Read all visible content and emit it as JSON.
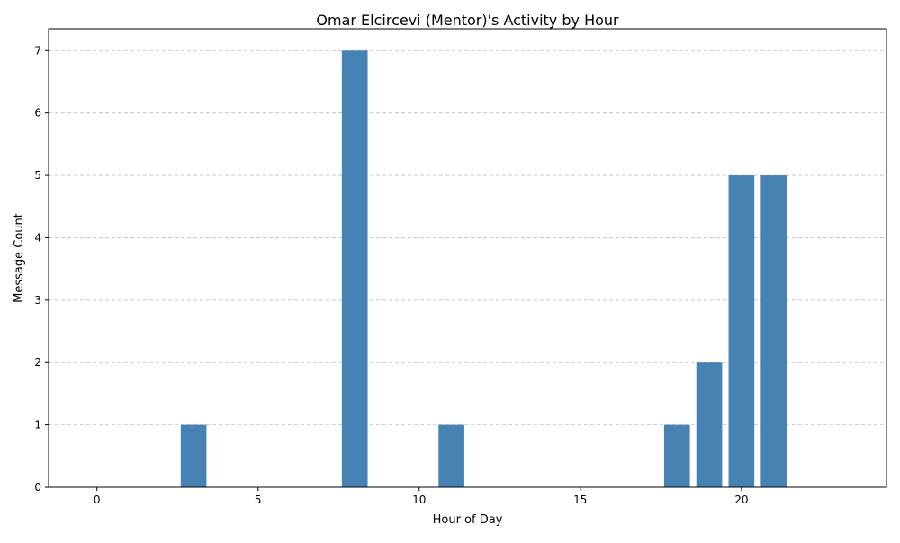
{
  "chart_data": {
    "type": "bar",
    "title": "Omar Elcircevi (Mentor)'s Activity by Hour",
    "xlabel": "Hour of Day",
    "ylabel": "Message Count",
    "x": [
      3,
      8,
      11,
      18,
      19,
      20,
      21
    ],
    "values": [
      1,
      7,
      1,
      1,
      2,
      5,
      5
    ],
    "xlim": [
      -1.5,
      24.5
    ],
    "ylim": [
      0,
      7.35
    ],
    "xticks": [
      0,
      5,
      10,
      15,
      20
    ],
    "yticks": [
      0,
      1,
      2,
      3,
      4,
      5,
      6,
      7
    ],
    "bar_color": "#4682b4",
    "grid": "y-dashed",
    "grid_color": "#c0c0c0"
  }
}
